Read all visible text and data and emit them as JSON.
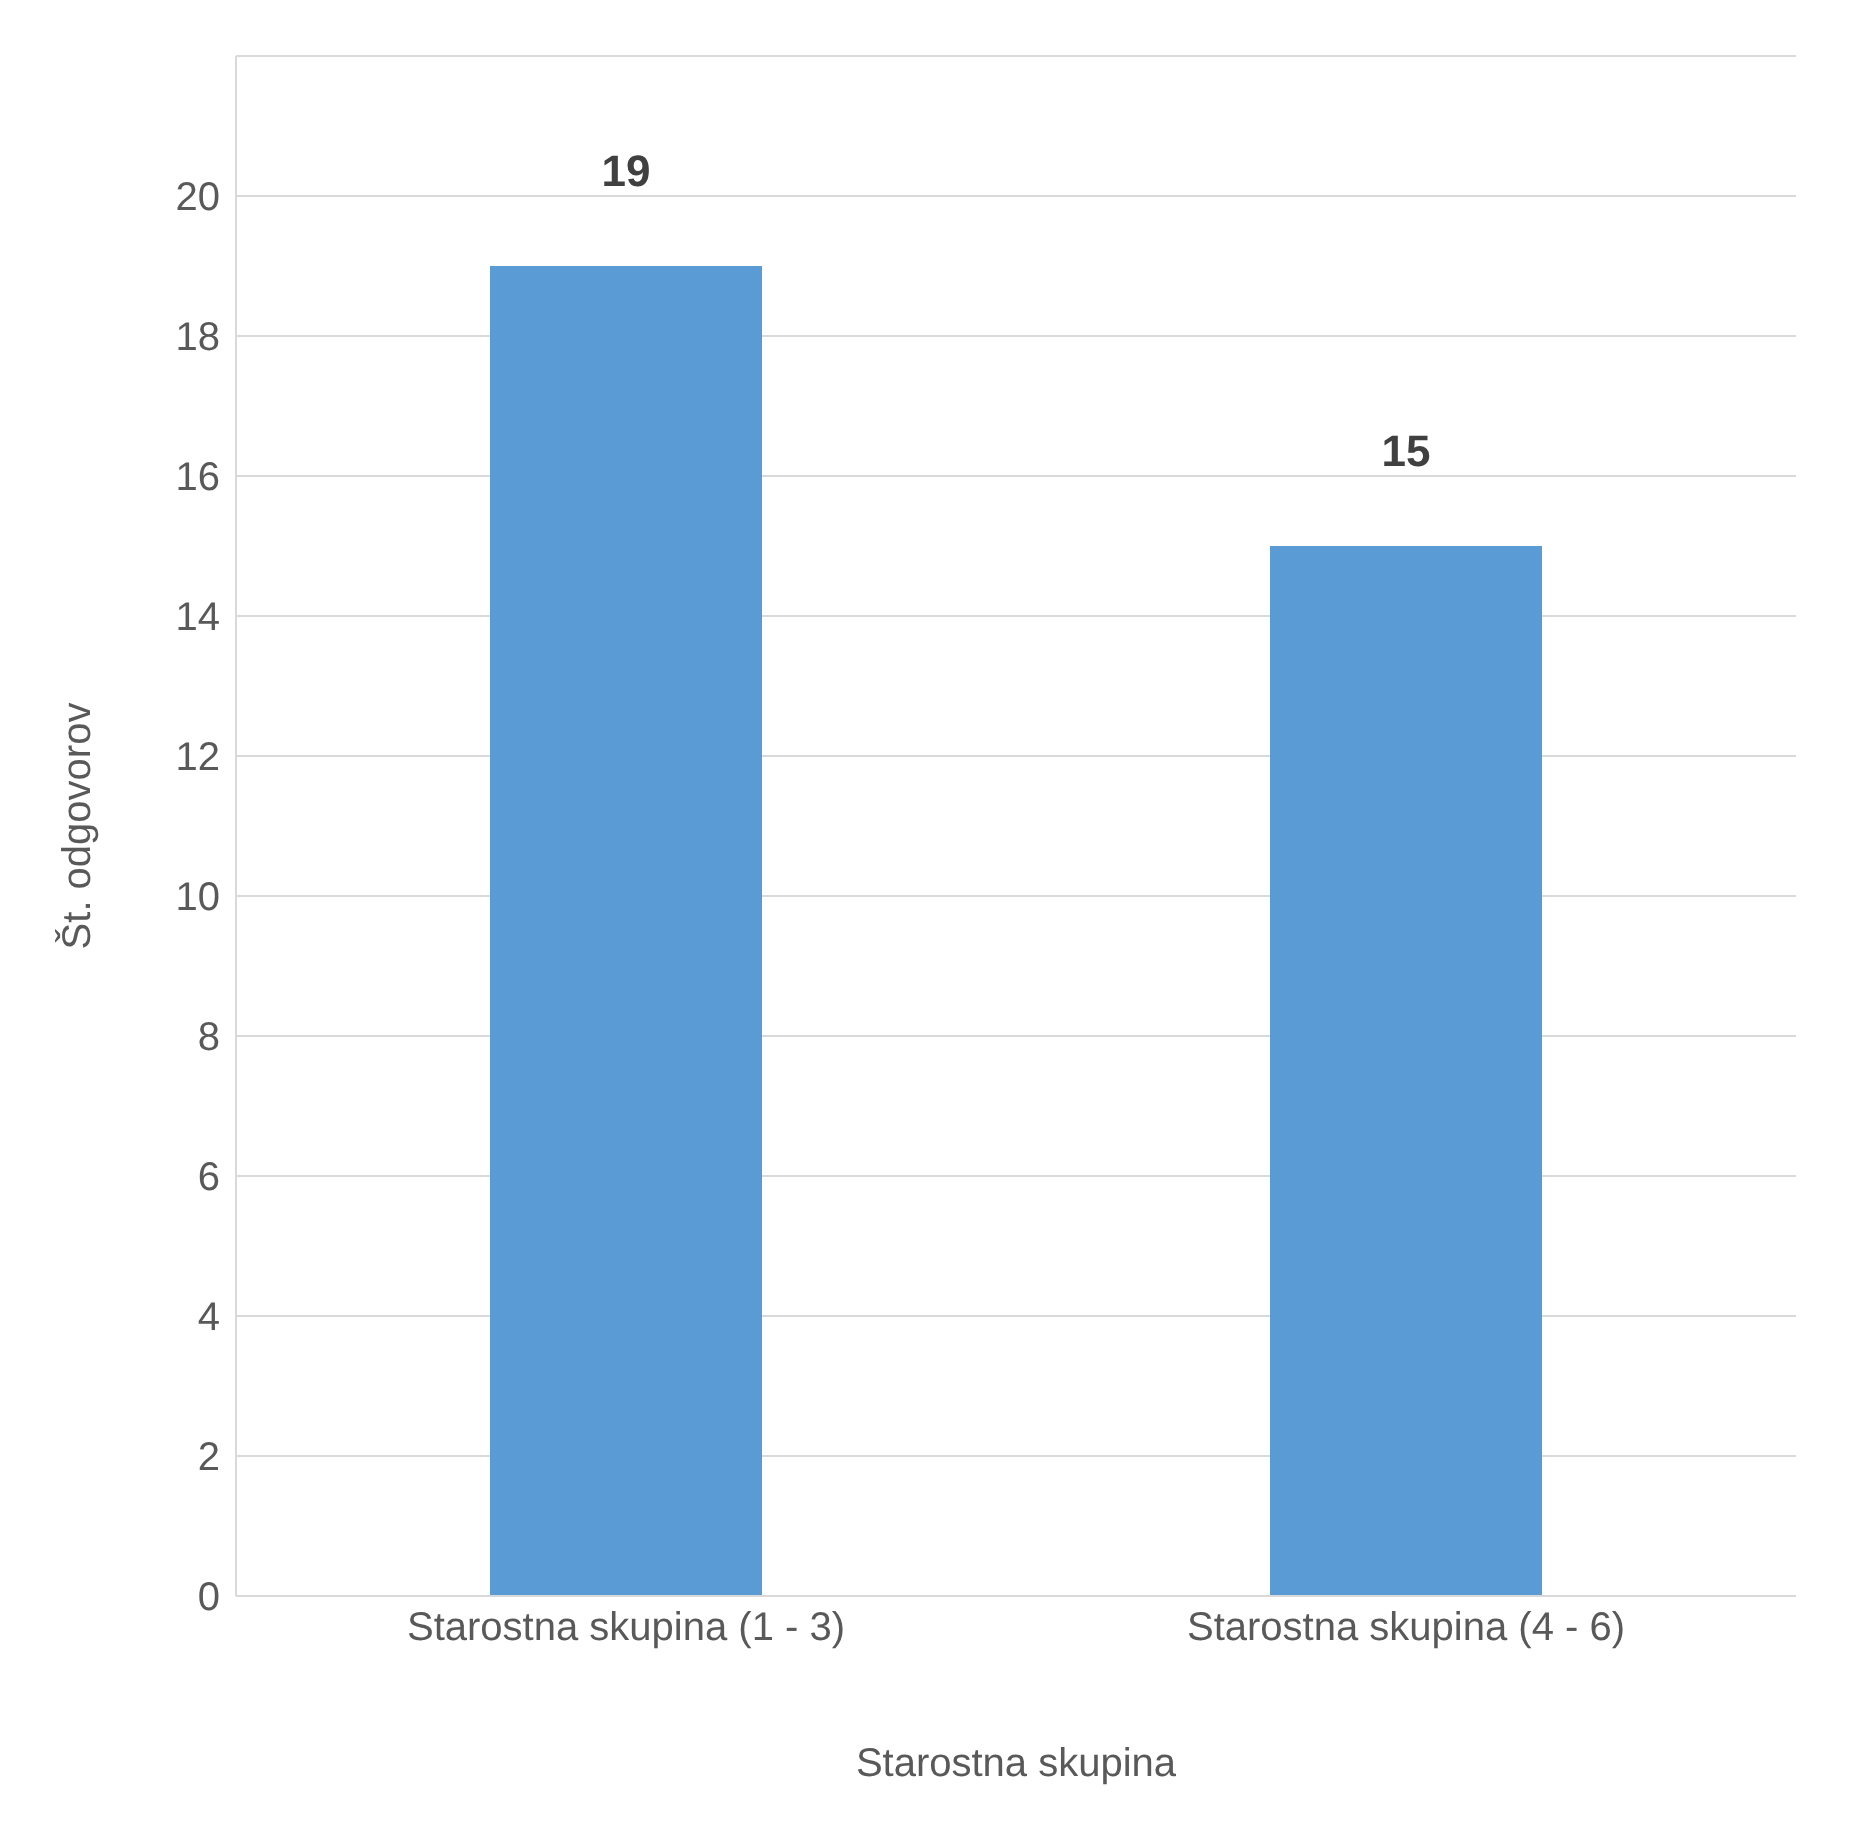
{
  "chart_data": {
    "type": "bar",
    "categories": [
      "Starostna skupina (1 - 3)",
      "Starostna skupina (4 - 6)"
    ],
    "values": [
      19,
      15
    ],
    "color": "#5b9bd5",
    "xlabel": "Starostna skupina",
    "ylabel": "Št. odgovorov",
    "ylim": [
      0,
      22
    ],
    "yticks": [
      0,
      2,
      4,
      6,
      8,
      10,
      12,
      14,
      16,
      18,
      20
    ],
    "grid": "y",
    "data_labels": true
  }
}
